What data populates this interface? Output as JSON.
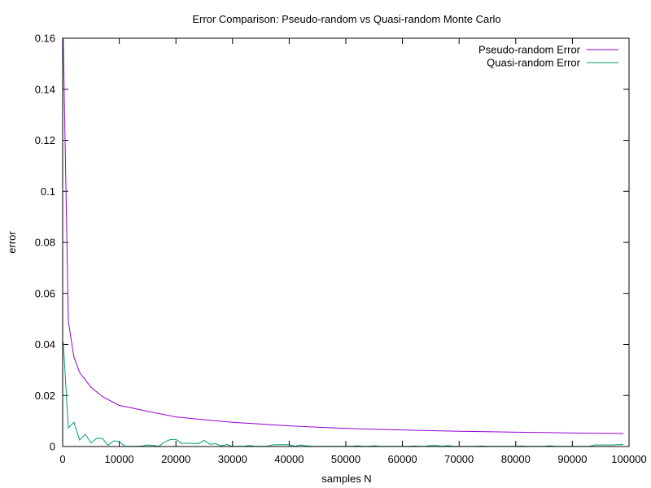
{
  "chart_data": {
    "type": "line",
    "title": "Error Comparison: Pseudo-random vs Quasi-random Monte Carlo",
    "xlabel": "samples N",
    "ylabel": "error",
    "xlim": [
      0,
      100000
    ],
    "ylim": [
      0,
      0.16
    ],
    "grid": false,
    "legend_position": "top-right",
    "x_ticks": [
      0,
      10000,
      20000,
      30000,
      40000,
      50000,
      60000,
      70000,
      80000,
      90000,
      100000
    ],
    "x_tick_labels": [
      "0",
      "10000",
      "20000",
      "30000",
      "40000",
      "50000",
      "60000",
      "70000",
      "80000",
      "90000",
      "100000"
    ],
    "y_ticks": [
      0,
      0.02,
      0.04,
      0.06,
      0.08,
      0.1,
      0.12,
      0.14,
      0.16
    ],
    "y_tick_labels": [
      "0",
      "0.02",
      "0.04",
      "0.06",
      "0.08",
      "0.1",
      "0.12",
      "0.14",
      "0.16"
    ],
    "series": [
      {
        "name": "Pseudo-random Error",
        "color": "#9400d3",
        "x": [
          100,
          1000,
          2000,
          3000,
          5000,
          7000,
          10000,
          12000,
          15000,
          20000,
          25000,
          30000,
          35000,
          40000,
          45000,
          50000,
          55000,
          60000,
          65000,
          70000,
          75000,
          80000,
          85000,
          90000,
          95000,
          99000
        ],
        "y": [
          0.16,
          0.049,
          0.035,
          0.029,
          0.0232,
          0.0196,
          0.0161,
          0.0152,
          0.0138,
          0.0116,
          0.0105,
          0.0095,
          0.0088,
          0.0081,
          0.0076,
          0.0071,
          0.0068,
          0.0065,
          0.0062,
          0.006,
          0.0058,
          0.0056,
          0.0055,
          0.0053,
          0.0052,
          0.0051
        ]
      },
      {
        "name": "Quasi-random Error",
        "color": "#009e73",
        "x": [
          100,
          1000,
          2000,
          3000,
          4000,
          5000,
          6000,
          7000,
          8000,
          9000,
          10000,
          11000,
          12000,
          13000,
          14000,
          15000,
          16000,
          17000,
          18000,
          19000,
          20000,
          21000,
          22000,
          23000,
          24000,
          25000,
          26000,
          27000,
          28000,
          29000,
          30000,
          31000,
          32000,
          33000,
          34000,
          35000,
          36000,
          37000,
          38000,
          39000,
          40000,
          41000,
          42000,
          43000,
          44000,
          45000,
          46000,
          47000,
          48000,
          49000,
          50000,
          51000,
          52000,
          53000,
          54000,
          55000,
          56000,
          57000,
          58000,
          59000,
          60000,
          61000,
          62000,
          63000,
          64000,
          65000,
          66000,
          67000,
          68000,
          69000,
          70000,
          71000,
          72000,
          73000,
          74000,
          75000,
          76000,
          77000,
          78000,
          79000,
          80000,
          81000,
          82000,
          83000,
          84000,
          85000,
          86000,
          87000,
          88000,
          89000,
          90000,
          91000,
          92000,
          93000,
          94000,
          95000,
          96000,
          97000,
          98000,
          99000
        ],
        "y": [
          0.041,
          0.0073,
          0.0095,
          0.0025,
          0.0048,
          0.0014,
          0.0032,
          0.0032,
          0.0005,
          0.0022,
          0.002,
          0.0001,
          0.0001,
          0.0001,
          0.0002,
          0.0006,
          0.0004,
          0.0001,
          0.0018,
          0.0027,
          0.0028,
          0.0012,
          0.0013,
          0.0012,
          0.0012,
          0.0024,
          0.0009,
          0.0011,
          0.0002,
          0.0008,
          0.0001,
          0.0001,
          0.0001,
          0.0004,
          0.0001,
          0.0001,
          0.0001,
          0.0006,
          0.0007,
          0.0007,
          0.0007,
          0.0001,
          0.0006,
          0.0003,
          0.0001,
          0.0001,
          0.0001,
          0.0001,
          0.0001,
          0.0001,
          0.0001,
          0.0001,
          0.0003,
          0.0001,
          0.0001,
          0.0003,
          0.0001,
          0.0001,
          0.0001,
          0.0001,
          0.0001,
          0.0001,
          0.0002,
          0.0001,
          0.0001,
          0.0004,
          0.0004,
          0.0001,
          0.0004,
          0.0001,
          0.0001,
          0.0001,
          0.0001,
          0.0001,
          0.0002,
          0.0001,
          0.0001,
          0.0001,
          0.0001,
          0.0001,
          0.0001,
          0.0002,
          0.0001,
          0.0001,
          0.0001,
          0.0001,
          0.0003,
          0.0001,
          0.0001,
          0.0001,
          0.0001,
          0.0001,
          0.0001,
          0.0001,
          0.0006,
          0.0006,
          0.0006,
          0.0006,
          0.0007,
          0.0008
        ]
      }
    ]
  }
}
